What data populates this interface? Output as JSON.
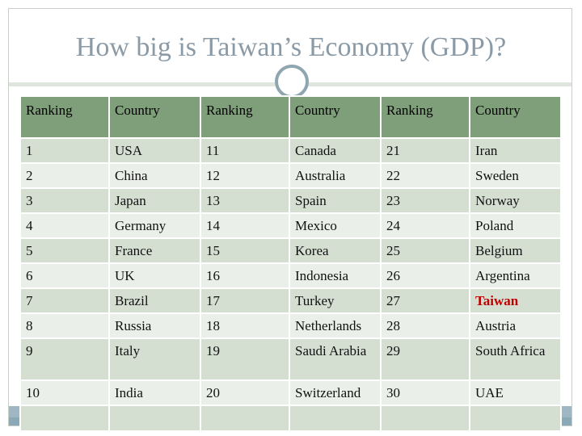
{
  "title": "How big is Taiwan’s Economy (GDP)?",
  "headers": [
    "Ranking",
    "Country",
    "Ranking",
    "Country",
    "Ranking",
    "Country"
  ],
  "rows": [
    [
      "1",
      "USA",
      "11",
      "Canada",
      "21",
      "Iran"
    ],
    [
      "2",
      "China",
      "12",
      "Australia",
      "22",
      "Sweden"
    ],
    [
      "3",
      "Japan",
      "13",
      "Spain",
      "23",
      "Norway"
    ],
    [
      "4",
      "Germany",
      "14",
      "Mexico",
      "24",
      "Poland"
    ],
    [
      "5",
      "France",
      "15",
      "Korea",
      "25",
      "Belgium"
    ],
    [
      "6",
      "UK",
      "16",
      "Indonesia",
      "26",
      "Argentina"
    ],
    [
      "7",
      "Brazil",
      "17",
      "Turkey",
      "27",
      "Taiwan"
    ],
    [
      "8",
      "Russia",
      "18",
      "Netherlands",
      "28",
      "Austria"
    ],
    [
      "9",
      "Italy",
      "19",
      "Saudi Arabia",
      "29",
      "South Africa"
    ],
    [
      "10",
      "India",
      "20",
      "Switzerland",
      "30",
      "UAE"
    ],
    [
      "",
      "",
      "",
      "",
      "",
      ""
    ]
  ],
  "highlight": {
    "text": "Taiwan",
    "color": "#c00000"
  },
  "colors": {
    "header_bg": "#7f9e7a",
    "row_odd_bg": "#d4dfd2",
    "row_even_bg": "#eaf0e9",
    "title_color": "#8a9aa6",
    "accent_band": "#9fb7c2"
  }
}
